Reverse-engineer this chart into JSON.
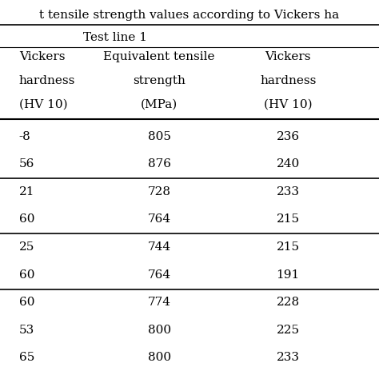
{
  "title": "t tensile strength values according to Vickers ha",
  "section_header": "Test line 1",
  "col1_header": [
    "Vickers",
    "hardness",
    "(HV 10)"
  ],
  "col2_header": [
    "Equivalent tensile",
    "strength",
    "(MPa)"
  ],
  "col3_header": [
    "Vickers",
    "hardness",
    "(HV 10)"
  ],
  "col1_partial": [
    "-8",
    "56",
    "21",
    "60",
    "25",
    "60",
    "60",
    "53",
    "65"
  ],
  "col2_data": [
    "805",
    "876",
    "728",
    "764",
    "744",
    "764",
    "774",
    "800",
    "800"
  ],
  "col3_data": [
    "236",
    "240",
    "233",
    "215",
    "215",
    "191",
    "228",
    "225",
    "233"
  ],
  "group_separators": [
    2,
    4,
    6
  ],
  "background_color": "#ffffff",
  "text_color": "#000000",
  "font_size": 11,
  "header_font_size": 11
}
